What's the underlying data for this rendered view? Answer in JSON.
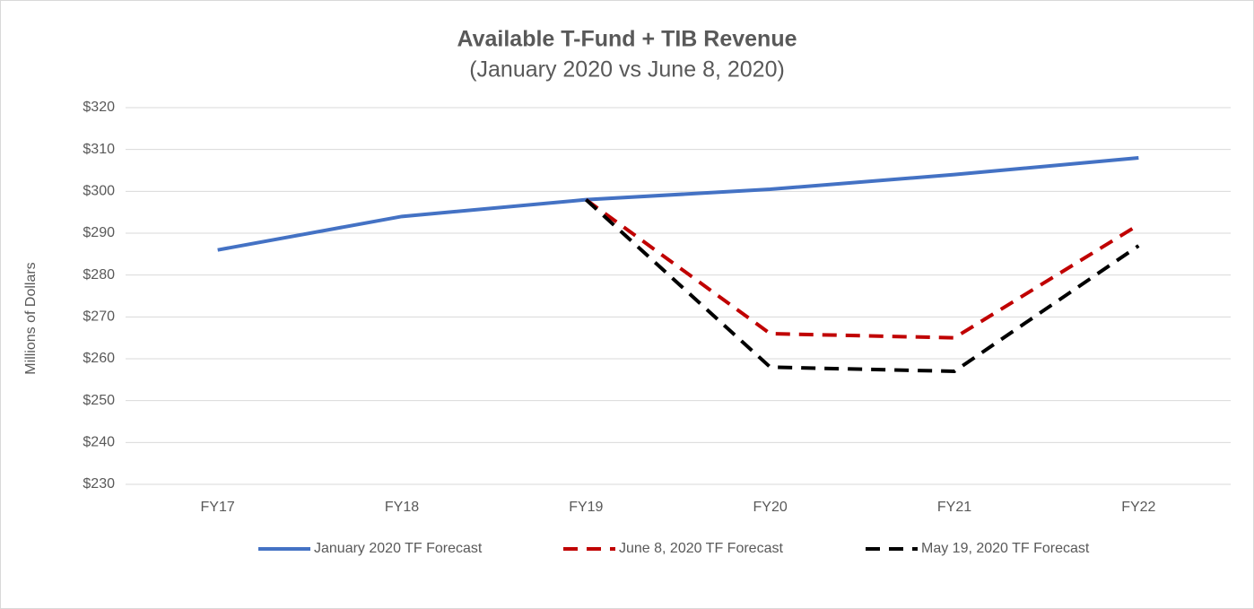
{
  "chart_data": {
    "type": "line",
    "title": "Available T-Fund + TIB Revenue",
    "subtitle": "(January 2020 vs June 8, 2020)",
    "y_label": "Millions of Dollars",
    "categories": [
      "FY17",
      "FY18",
      "FY19",
      "FY20",
      "FY21",
      "FY22"
    ],
    "series": [
      {
        "name": "January 2020 TF Forecast",
        "color": "#4472c4",
        "dashed": false,
        "values": [
          286,
          294,
          298,
          300.5,
          304,
          308
        ]
      },
      {
        "name": "June 8, 2020 TF Forecast",
        "color": "#c00000",
        "dashed": true,
        "values": [
          null,
          null,
          298,
          266,
          265,
          292
        ]
      },
      {
        "name": "May 19, 2020 TF Forecast",
        "color": "#000000",
        "dashed": true,
        "values": [
          null,
          null,
          298,
          258,
          257,
          287
        ]
      }
    ],
    "ylim": [
      230,
      320
    ],
    "yticks": [
      {
        "value": 230,
        "label": "$230"
      },
      {
        "value": 240,
        "label": "$240"
      },
      {
        "value": 250,
        "label": "$250"
      },
      {
        "value": 260,
        "label": "$260"
      },
      {
        "value": 270,
        "label": "$270"
      },
      {
        "value": 280,
        "label": "$280"
      },
      {
        "value": 290,
        "label": "$290"
      },
      {
        "value": 300,
        "label": "$300"
      },
      {
        "value": 310,
        "label": "$310"
      },
      {
        "value": 320,
        "label": "$320"
      }
    ],
    "grid": true,
    "legend": "bottom"
  }
}
